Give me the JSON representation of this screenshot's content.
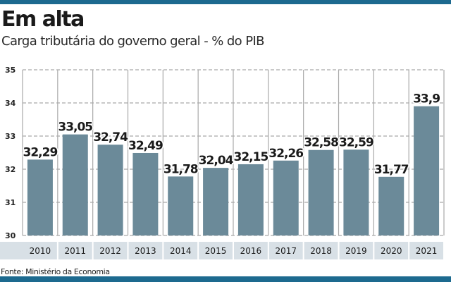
{
  "colors": {
    "accent": "#1d6a8f",
    "bar": "#6b8a99",
    "year_band": "#d8e0e6",
    "grid": "#a9a9a9"
  },
  "chart_data": {
    "type": "bar",
    "title": "Em alta",
    "subtitle": "Carga tributária do governo geral - % do PIB",
    "xlabel": "",
    "ylabel": "",
    "ylim": [
      30,
      35
    ],
    "yticks": [
      "30",
      "31",
      "32",
      "33",
      "34",
      "35"
    ],
    "grid": true,
    "categories": [
      "2010",
      "2011",
      "2012",
      "2013",
      "2014",
      "2015",
      "2016",
      "2017",
      "2018",
      "2019",
      "2020",
      "2021"
    ],
    "values": [
      32.29,
      33.05,
      32.74,
      32.49,
      31.78,
      32.04,
      32.15,
      32.26,
      32.58,
      32.59,
      31.77,
      33.9
    ],
    "data_labels": [
      "32,29",
      "33,05",
      "32,74",
      "32,49",
      "31,78",
      "32,04",
      "32,15",
      "32,26",
      "32,58",
      "32,59",
      "31,77",
      "33,9"
    ],
    "source": "Fonte: Ministério da Economia"
  }
}
